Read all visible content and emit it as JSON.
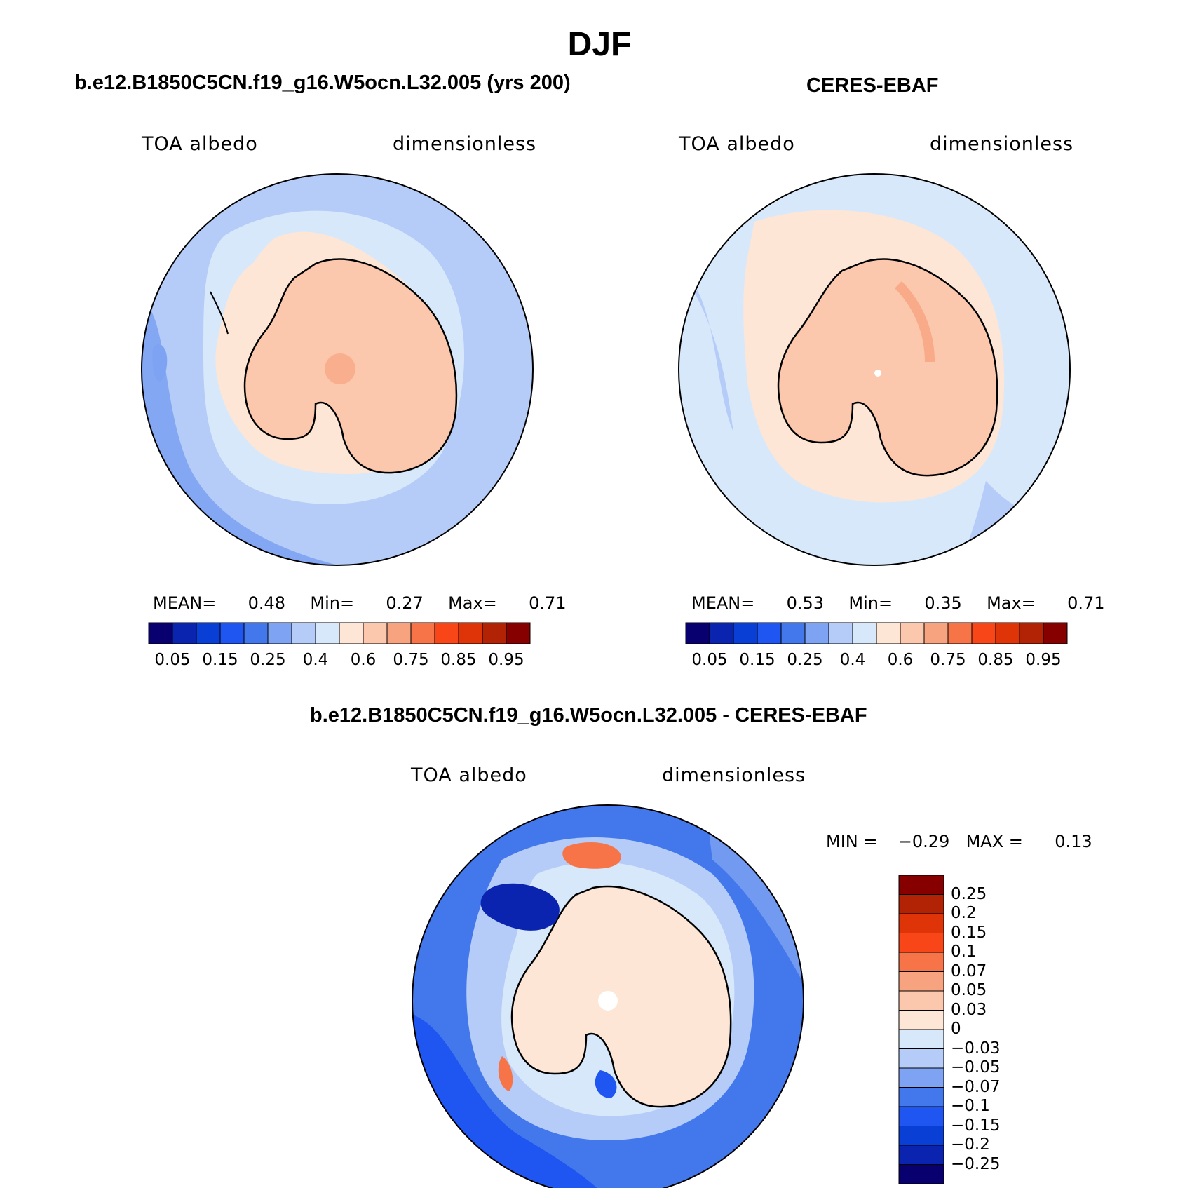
{
  "title": "DJF",
  "panels": [
    {
      "title": "b.e12.B1850C5CN.f19_g16.W5ocn.L32.005 (yrs 200)",
      "left_label": "TOA albedo",
      "right_label": "dimensionless",
      "mean_label": "MEAN=",
      "mean": "0.48",
      "min_label": "Min=",
      "min": "0.27",
      "max_label": "Max=",
      "max": "0.71"
    },
    {
      "title": "CERES-EBAF",
      "left_label": "TOA albedo",
      "right_label": "dimensionless",
      "mean_label": "MEAN=",
      "mean": "0.53",
      "min_label": "Min=",
      "min": "0.35",
      "max_label": "Max=",
      "max": "0.71"
    }
  ],
  "diff_panel": {
    "title": "b.e12.B1850C5CN.f19_g16.W5ocn.L32.005 - CERES-EBAF",
    "left_label": "TOA albedo",
    "right_label": "dimensionless",
    "min_label": "MIN =",
    "min": "−0.29",
    "max_label": "MAX =",
    "max": "0.13"
  },
  "colorbar_abs": {
    "colors": [
      "#08006e",
      "#0a24b0",
      "#0a3fd6",
      "#1f55f0",
      "#4377ec",
      "#7ea3f2",
      "#b4ccf7",
      "#d8e8fb",
      "#fde6d6",
      "#fbc8ad",
      "#f8a37f",
      "#f67447",
      "#f84618",
      "#de3407",
      "#b22205",
      "#860000"
    ],
    "labels": [
      "0.05",
      "0.15",
      "0.25",
      "0.4",
      "0.6",
      "0.75",
      "0.85",
      "0.95"
    ]
  },
  "colorbar_diff": {
    "colors": [
      "#860000",
      "#b22205",
      "#de3407",
      "#f84618",
      "#f67447",
      "#f8a37f",
      "#fbc8ad",
      "#fde6d6",
      "#d8e8fb",
      "#b4ccf7",
      "#7ea3f2",
      "#4377ec",
      "#1f55f0",
      "#0a3fd6",
      "#0a24b0",
      "#08006e"
    ],
    "labels": [
      "0.25",
      "0.2",
      "0.15",
      "0.1",
      "0.07",
      "0.05",
      "0.03",
      "0",
      "−0.03",
      "−0.05",
      "−0.07",
      "−0.1",
      "−0.15",
      "−0.2",
      "−0.25"
    ]
  }
}
